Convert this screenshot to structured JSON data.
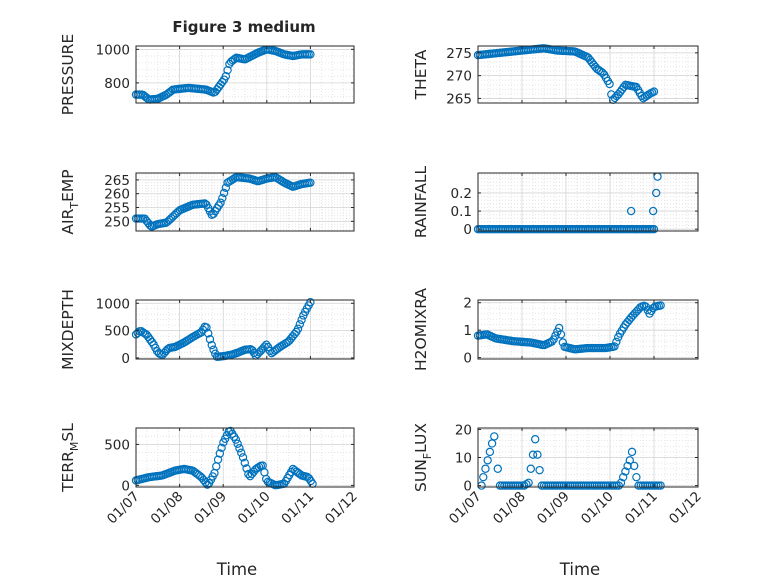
{
  "figure_title": "Figure 3 medium",
  "chart_data": [
    {
      "type": "scatter",
      "id": "pressure",
      "title": "Figure 3 medium",
      "ylabel": "PRESSURE",
      "ylabel_sub": "",
      "ylabel_sub_text": "",
      "ylabel_tail": "",
      "xlabel": "",
      "show_xticklabels": false,
      "xlim": [
        0,
        5
      ],
      "ylim": [
        680,
        1020
      ],
      "yticks": [
        800,
        1000
      ],
      "yticklabels": [
        "800",
        "1000"
      ],
      "xticks": [
        0,
        1,
        2,
        3,
        4,
        5
      ],
      "xticklabels": [
        "01/07",
        "01/08",
        "01/09",
        "01/10",
        "01/11",
        "01/12"
      ],
      "keyframes": [
        [
          0,
          730
        ],
        [
          0.15,
          730
        ],
        [
          0.3,
          700
        ],
        [
          0.5,
          705
        ],
        [
          0.7,
          730
        ],
        [
          0.85,
          760
        ],
        [
          1.2,
          770
        ],
        [
          1.6,
          760
        ],
        [
          1.8,
          740
        ],
        [
          2.05,
          830
        ],
        [
          2.15,
          920
        ],
        [
          2.3,
          950
        ],
        [
          2.5,
          940
        ],
        [
          2.8,
          980
        ],
        [
          3.0,
          1000
        ],
        [
          3.2,
          990
        ],
        [
          3.4,
          970
        ],
        [
          3.6,
          960
        ],
        [
          3.8,
          970
        ],
        [
          4.0,
          970
        ]
      ],
      "n": 100,
      "x_start": 0.0,
      "x_end": 4.0
    },
    {
      "type": "scatter",
      "id": "theta",
      "title": "",
      "ylabel": "THETA",
      "ylabel_sub": "",
      "ylabel_sub_text": "",
      "ylabel_tail": "",
      "xlabel": "",
      "show_xticklabels": false,
      "xlim": [
        0,
        5
      ],
      "ylim": [
        264,
        276.5
      ],
      "yticks": [
        265,
        270,
        275
      ],
      "yticklabels": [
        "265",
        "270",
        "275"
      ],
      "xticks": [
        0,
        1,
        2,
        3,
        4,
        5
      ],
      "xticklabels": [
        "01/07",
        "01/08",
        "01/09",
        "01/10",
        "01/11",
        "01/12"
      ],
      "keyframes": [
        [
          0,
          274.5
        ],
        [
          0.5,
          275
        ],
        [
          1,
          275.5
        ],
        [
          1.5,
          276
        ],
        [
          1.8,
          275.5
        ],
        [
          2.2,
          275.3
        ],
        [
          2.5,
          274
        ],
        [
          2.7,
          271.5
        ],
        [
          2.85,
          270.5
        ],
        [
          3.0,
          268
        ],
        [
          3.05,
          264.5
        ],
        [
          3.2,
          266
        ],
        [
          3.35,
          268
        ],
        [
          3.6,
          267.5
        ],
        [
          3.75,
          265
        ],
        [
          3.9,
          266
        ],
        [
          4.0,
          266.5
        ]
      ],
      "n": 100,
      "x_start": 0.0,
      "x_end": 4.0
    },
    {
      "type": "scatter",
      "id": "air_temp",
      "title": "",
      "ylabel": "AIR",
      "ylabel_sub": "T",
      "ylabel_sub_text": "_T",
      "ylabel_tail": "EMP",
      "xlabel": "",
      "show_xticklabels": false,
      "xlim": [
        0,
        5
      ],
      "ylim": [
        246.5,
        267.5
      ],
      "yticks": [
        250,
        255,
        260,
        265
      ],
      "yticklabels": [
        "250",
        "255",
        "260",
        "265"
      ],
      "xticks": [
        0,
        1,
        2,
        3,
        4,
        5
      ],
      "xticklabels": [
        "01/07",
        "01/08",
        "01/09",
        "01/10",
        "01/11",
        "01/12"
      ],
      "keyframes": [
        [
          0,
          251
        ],
        [
          0.2,
          251
        ],
        [
          0.35,
          248
        ],
        [
          0.5,
          249
        ],
        [
          0.7,
          249.5
        ],
        [
          1.0,
          254
        ],
        [
          1.3,
          256
        ],
        [
          1.6,
          256.5
        ],
        [
          1.75,
          252
        ],
        [
          1.95,
          257
        ],
        [
          2.1,
          264
        ],
        [
          2.3,
          266
        ],
        [
          2.6,
          265.5
        ],
        [
          2.8,
          264.5
        ],
        [
          3.0,
          265.5
        ],
        [
          3.2,
          266
        ],
        [
          3.4,
          264
        ],
        [
          3.6,
          262.5
        ],
        [
          3.8,
          263.5
        ],
        [
          4.0,
          264
        ]
      ],
      "n": 100,
      "x_start": 0.0,
      "x_end": 4.0
    },
    {
      "type": "scatter",
      "id": "rainfall",
      "title": "",
      "ylabel": "RAINFALL",
      "ylabel_sub": "",
      "ylabel_sub_text": "",
      "ylabel_tail": "",
      "xlabel": "",
      "show_xticklabels": false,
      "xlim": [
        0,
        5
      ],
      "ylim": [
        -0.01,
        0.31
      ],
      "yticks": [
        0,
        0.1,
        0.2
      ],
      "yticklabels": [
        "0",
        "0.1",
        "0.2"
      ],
      "xticks": [
        0,
        1,
        2,
        3,
        4,
        5
      ],
      "xticklabels": [
        "01/07",
        "01/08",
        "01/09",
        "01/10",
        "01/11",
        "01/12"
      ],
      "keyframes": [
        [
          0,
          0
        ],
        [
          4.0,
          0
        ]
      ],
      "extra_points": [
        [
          3.48,
          0.1
        ],
        [
          3.98,
          0.1
        ],
        [
          4.05,
          0.2
        ],
        [
          4.08,
          0.29
        ]
      ],
      "n": 100,
      "x_start": 0.0,
      "x_end": 4.0
    },
    {
      "type": "scatter",
      "id": "mixdepth",
      "title": "",
      "ylabel": "MIXDEPTH",
      "ylabel_sub": "",
      "ylabel_sub_text": "",
      "ylabel_tail": "",
      "xlabel": "",
      "show_xticklabels": false,
      "xlim": [
        0,
        5
      ],
      "ylim": [
        -20,
        1060
      ],
      "yticks": [
        0,
        500,
        1000
      ],
      "yticklabels": [
        "0",
        "500",
        "1000"
      ],
      "xticks": [
        0,
        1,
        2,
        3,
        4,
        5
      ],
      "xticklabels": [
        "01/07",
        "01/08",
        "01/09",
        "01/10",
        "01/11",
        "01/12"
      ],
      "keyframes": [
        [
          0,
          430
        ],
        [
          0.1,
          500
        ],
        [
          0.25,
          420
        ],
        [
          0.4,
          250
        ],
        [
          0.5,
          100
        ],
        [
          0.6,
          50
        ],
        [
          0.75,
          180
        ],
        [
          0.9,
          200
        ],
        [
          1.1,
          280
        ],
        [
          1.3,
          380
        ],
        [
          1.5,
          470
        ],
        [
          1.6,
          600
        ],
        [
          1.75,
          200
        ],
        [
          1.85,
          20
        ],
        [
          2.0,
          30
        ],
        [
          2.2,
          60
        ],
        [
          2.35,
          100
        ],
        [
          2.5,
          150
        ],
        [
          2.65,
          160
        ],
        [
          2.75,
          40
        ],
        [
          2.85,
          120
        ],
        [
          3.0,
          250
        ],
        [
          3.1,
          80
        ],
        [
          3.3,
          200
        ],
        [
          3.5,
          300
        ],
        [
          3.7,
          500
        ],
        [
          3.85,
          800
        ],
        [
          4.0,
          1020
        ]
      ],
      "n": 100,
      "x_start": 0.0,
      "x_end": 4.0
    },
    {
      "type": "scatter",
      "id": "h2omixra",
      "title": "",
      "ylabel": "H2OMIXRA",
      "ylabel_sub": "",
      "ylabel_sub_text": "",
      "ylabel_tail": "",
      "xlabel": "",
      "show_xticklabels": false,
      "xlim": [
        0,
        5
      ],
      "ylim": [
        -0.05,
        2.1
      ],
      "yticks": [
        0,
        1,
        2
      ],
      "yticklabels": [
        "0",
        "1",
        "2"
      ],
      "xticks": [
        0,
        1,
        2,
        3,
        4,
        5
      ],
      "xticklabels": [
        "01/07",
        "01/08",
        "01/09",
        "01/10",
        "01/11",
        "01/12"
      ],
      "keyframes": [
        [
          0,
          0.8
        ],
        [
          0.2,
          0.85
        ],
        [
          0.4,
          0.7
        ],
        [
          0.8,
          0.6
        ],
        [
          1.2,
          0.55
        ],
        [
          1.5,
          0.45
        ],
        [
          1.7,
          0.6
        ],
        [
          1.85,
          1.1
        ],
        [
          1.95,
          0.4
        ],
        [
          2.2,
          0.3
        ],
        [
          2.5,
          0.35
        ],
        [
          2.9,
          0.35
        ],
        [
          3.1,
          0.4
        ],
        [
          3.2,
          0.8
        ],
        [
          3.35,
          1.2
        ],
        [
          3.5,
          1.5
        ],
        [
          3.7,
          1.85
        ],
        [
          3.8,
          1.9
        ],
        [
          3.9,
          1.6
        ],
        [
          4.0,
          1.85
        ],
        [
          4.15,
          1.9
        ]
      ],
      "n": 100,
      "x_start": 0.0,
      "x_end": 4.15
    },
    {
      "type": "scatter",
      "id": "terr_msl",
      "title": "",
      "ylabel": "TERR",
      "ylabel_sub": "M",
      "ylabel_sub_text": "_M",
      "ylabel_tail": "SL",
      "xlabel": "Time",
      "show_xticklabels": true,
      "xlim": [
        0,
        5
      ],
      "ylim": [
        -20,
        700
      ],
      "yticks": [
        0,
        500
      ],
      "yticklabels": [
        "0",
        "500"
      ],
      "xticks": [
        0,
        1,
        2,
        3,
        4,
        5
      ],
      "xticklabels": [
        "01/07",
        "01/08",
        "01/09",
        "01/10",
        "01/11",
        "01/12"
      ],
      "keyframes": [
        [
          0,
          60
        ],
        [
          0.3,
          100
        ],
        [
          0.6,
          120
        ],
        [
          0.9,
          180
        ],
        [
          1.1,
          200
        ],
        [
          1.3,
          180
        ],
        [
          1.5,
          100
        ],
        [
          1.65,
          0
        ],
        [
          1.8,
          150
        ],
        [
          1.9,
          350
        ],
        [
          2.0,
          520
        ],
        [
          2.15,
          680
        ],
        [
          2.3,
          550
        ],
        [
          2.45,
          350
        ],
        [
          2.6,
          100
        ],
        [
          2.75,
          200
        ],
        [
          2.9,
          250
        ],
        [
          3.0,
          50
        ],
        [
          3.2,
          0
        ],
        [
          3.4,
          20
        ],
        [
          3.6,
          200
        ],
        [
          3.8,
          120
        ],
        [
          3.95,
          100
        ],
        [
          4.05,
          20
        ]
      ],
      "n": 100,
      "x_start": 0.0,
      "x_end": 4.05
    },
    {
      "type": "scatter",
      "id": "sun_flux",
      "title": "",
      "ylabel": "SUN",
      "ylabel_sub": "F",
      "ylabel_sub_text": "_F",
      "ylabel_tail": "LUX",
      "xlabel": "Time",
      "show_xticklabels": true,
      "xlim": [
        0,
        5
      ],
      "ylim": [
        -0.5,
        20.5
      ],
      "yticks": [
        0,
        10,
        20
      ],
      "yticklabels": [
        "0",
        "10",
        "20"
      ],
      "xticks": [
        0,
        1,
        2,
        3,
        4,
        5
      ],
      "xticklabels": [
        "01/07",
        "01/08",
        "01/09",
        "01/10",
        "01/11",
        "01/12"
      ],
      "keyframes": [
        [
          0,
          0
        ]
      ],
      "extra_points": [
        [
          0.08,
          0
        ],
        [
          0.12,
          3
        ],
        [
          0.17,
          6
        ],
        [
          0.22,
          9
        ],
        [
          0.27,
          12
        ],
        [
          0.32,
          15
        ],
        [
          0.37,
          17.5
        ],
        [
          0.45,
          6
        ],
        [
          0.5,
          0
        ],
        [
          0.55,
          0
        ],
        [
          0.6,
          0
        ],
        [
          0.65,
          0
        ],
        [
          0.7,
          0
        ],
        [
          0.75,
          0
        ],
        [
          0.8,
          0
        ],
        [
          0.85,
          0
        ],
        [
          0.9,
          0
        ],
        [
          0.95,
          0
        ],
        [
          1.0,
          0
        ],
        [
          1.05,
          0
        ],
        [
          1.1,
          0.5
        ],
        [
          1.15,
          1
        ],
        [
          1.2,
          6
        ],
        [
          1.25,
          11
        ],
        [
          1.3,
          16.5
        ],
        [
          1.35,
          11
        ],
        [
          1.4,
          5.5
        ],
        [
          1.45,
          0
        ],
        [
          1.5,
          0
        ],
        [
          1.55,
          0
        ],
        [
          1.6,
          0
        ],
        [
          1.65,
          0
        ],
        [
          1.7,
          0
        ],
        [
          1.75,
          0
        ],
        [
          1.8,
          0
        ],
        [
          1.85,
          0
        ],
        [
          1.9,
          0
        ],
        [
          1.95,
          0
        ],
        [
          2.0,
          0
        ],
        [
          2.05,
          0
        ],
        [
          2.1,
          0
        ],
        [
          2.15,
          0
        ],
        [
          2.2,
          0
        ],
        [
          2.25,
          0
        ],
        [
          2.3,
          0
        ],
        [
          2.35,
          0
        ],
        [
          2.4,
          0
        ],
        [
          2.45,
          0
        ],
        [
          2.5,
          0
        ],
        [
          2.55,
          0
        ],
        [
          2.6,
          0
        ],
        [
          2.65,
          0
        ],
        [
          2.7,
          0
        ],
        [
          2.75,
          0
        ],
        [
          2.8,
          0
        ],
        [
          2.85,
          0
        ],
        [
          2.9,
          0
        ],
        [
          2.95,
          0
        ],
        [
          3.0,
          0
        ],
        [
          3.05,
          0
        ],
        [
          3.1,
          0
        ],
        [
          3.15,
          0
        ],
        [
          3.2,
          0
        ],
        [
          3.25,
          1
        ],
        [
          3.3,
          3
        ],
        [
          3.35,
          5
        ],
        [
          3.4,
          7
        ],
        [
          3.45,
          9
        ],
        [
          3.5,
          12
        ],
        [
          3.55,
          7
        ],
        [
          3.6,
          3
        ],
        [
          3.65,
          0
        ],
        [
          3.7,
          0
        ],
        [
          3.75,
          0
        ],
        [
          3.8,
          0
        ],
        [
          3.85,
          0
        ],
        [
          3.9,
          0
        ],
        [
          3.95,
          0
        ],
        [
          4.0,
          0
        ],
        [
          4.05,
          0
        ],
        [
          4.1,
          0
        ],
        [
          4.15,
          0
        ]
      ],
      "n": 0,
      "x_start": 0.0,
      "x_end": 4.15
    }
  ]
}
